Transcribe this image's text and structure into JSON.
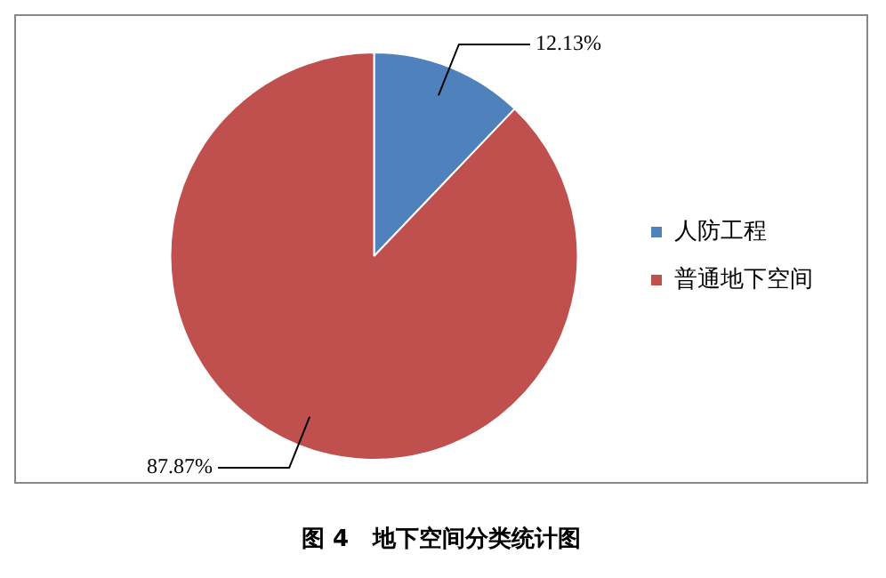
{
  "chart_data": {
    "type": "pie",
    "title": "图 4   地下空间分类统计图",
    "categories": [
      "人防工程",
      "普通地下空间"
    ],
    "values": [
      12.13,
      87.87
    ],
    "colors": [
      "#4f81bd",
      "#c0504d"
    ],
    "value_labels": [
      "12.13%",
      "87.87%"
    ],
    "legend": "right"
  }
}
